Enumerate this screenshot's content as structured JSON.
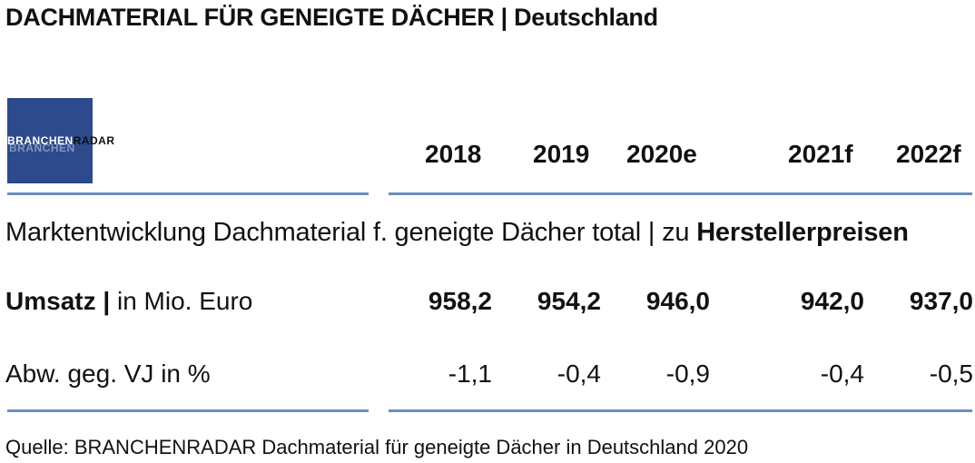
{
  "title": {
    "main": "DACHMATERIAL FÜR GENEIGTE DÄCHER",
    "separator": "|",
    "region": "Deutschland"
  },
  "logo": {
    "part1": "BRANCHEN",
    "part2": "RADAR",
    "brand_color": "#2c4a8c"
  },
  "table": {
    "years": [
      "2018",
      "2019",
      "2020e",
      "2021f",
      "2022f"
    ],
    "section_title": {
      "prefix": "Marktentwicklung Dachmaterial f. geneigte Dächer total | zu ",
      "emphasis": "Herstellerpreisen"
    },
    "rows": [
      {
        "label_bold": "Umsatz |",
        "label_rest": " in Mio. Euro",
        "values": [
          "958,2",
          "954,2",
          "946,0",
          "942,0",
          "937,0"
        ]
      },
      {
        "label_bold": "",
        "label_rest": "Abw. geg. VJ in %",
        "values": [
          "-1,1",
          "-0,4",
          "-0,9",
          "-0,4",
          "-0,5"
        ]
      }
    ]
  },
  "source": "Quelle: BRANCHENRADAR Dachmaterial für geneigte Dächer in Deutschland 2020",
  "colors": {
    "rule": "#6b8ec0",
    "text": "#111111"
  }
}
